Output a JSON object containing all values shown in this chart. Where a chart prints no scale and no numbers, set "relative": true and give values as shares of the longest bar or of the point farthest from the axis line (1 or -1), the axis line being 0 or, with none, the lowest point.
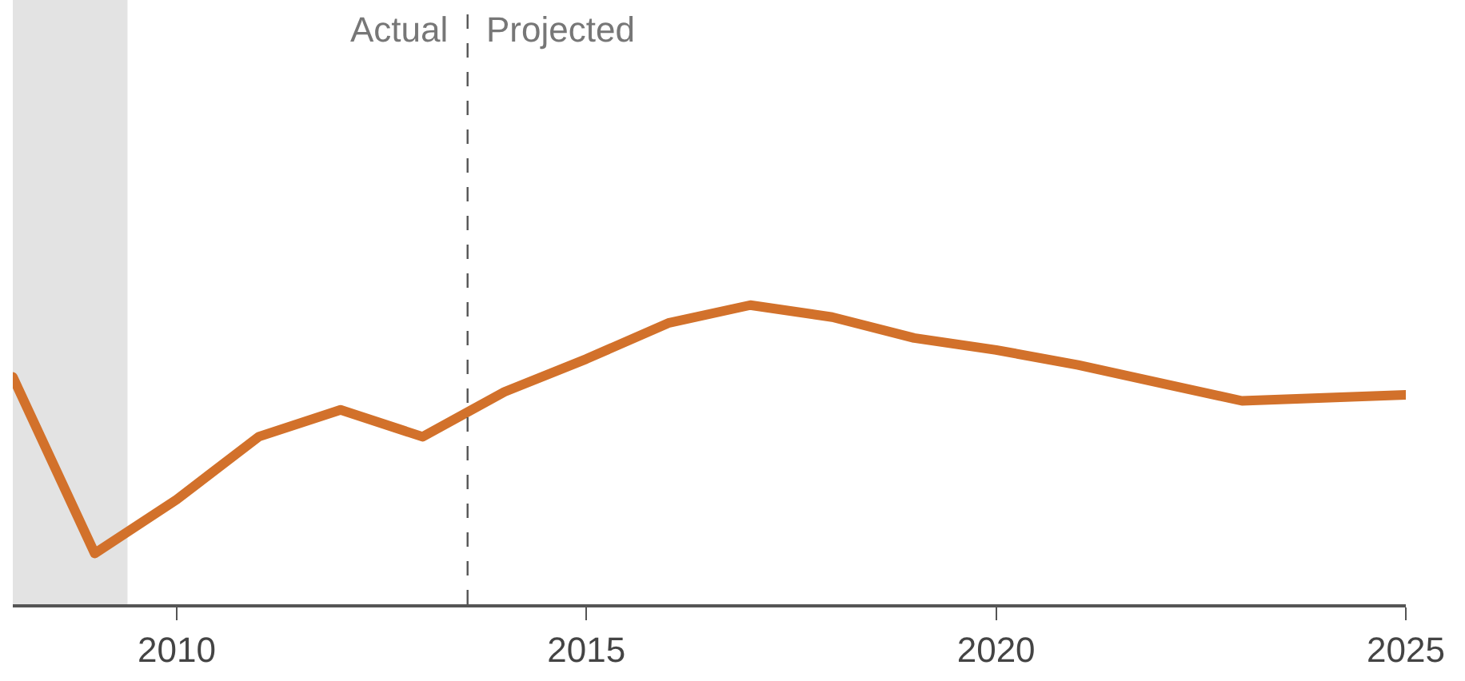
{
  "chart_data": {
    "type": "line",
    "relative": true,
    "x": [
      2008,
      2009,
      2010,
      2011,
      2012,
      2013,
      2014,
      2015,
      2016,
      2017,
      2018,
      2019,
      2020,
      2021,
      2022,
      2023,
      2024,
      2025
    ],
    "series": [
      {
        "color": "#d2712b",
        "values": [
          0.76,
          0.17,
          0.35,
          0.56,
          0.65,
          0.56,
          0.71,
          0.82,
          0.94,
          1,
          0.96,
          0.89,
          0.85,
          0.8,
          0.74,
          0.68,
          0.69,
          0.7
        ]
      }
    ],
    "xlim": [
      2008,
      2025
    ],
    "xticks": [
      2010,
      2015,
      2020,
      2025
    ],
    "bands": [
      {
        "axis": "x",
        "from": 2008,
        "to": 2009.4,
        "color": "#e3e3e3"
      }
    ],
    "ref_lines": [
      {
        "axis": "x",
        "value": 2013.55,
        "color": "#555555",
        "line_style": "dashed"
      }
    ],
    "annotations": [
      "Actual",
      "Projected"
    ],
    "marker": "none",
    "line_style": "solid"
  }
}
